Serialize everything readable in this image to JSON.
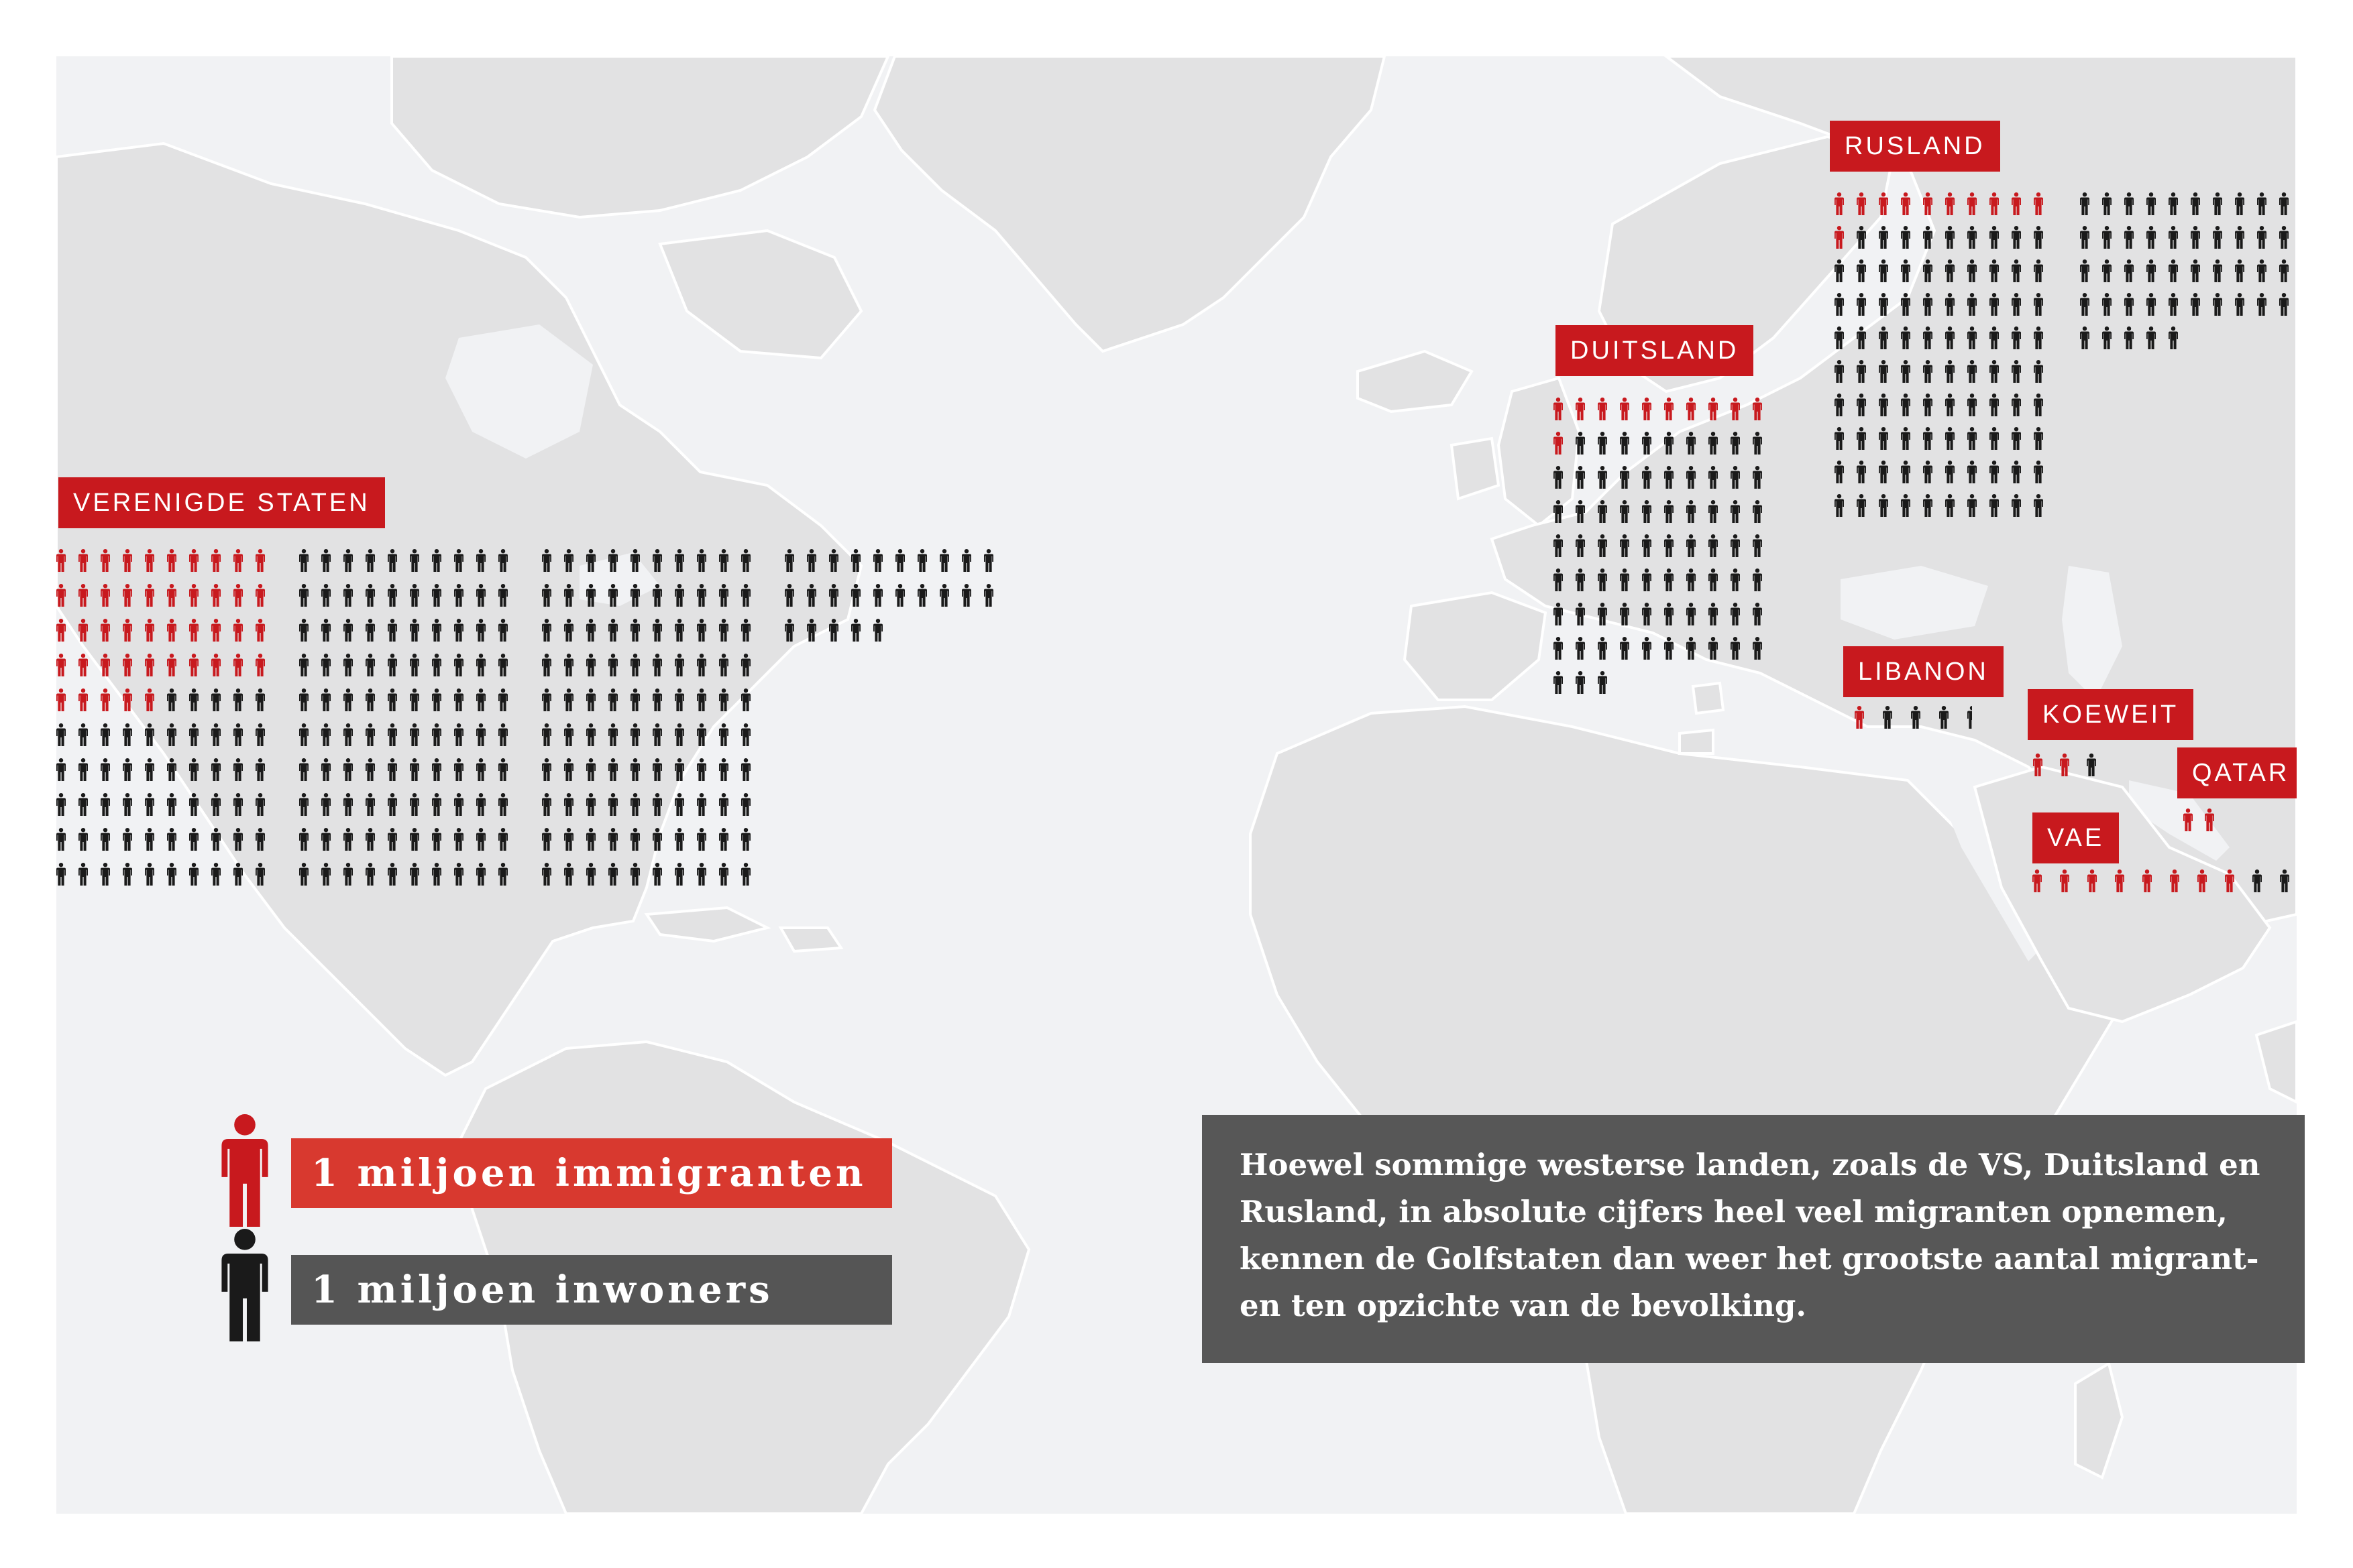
{
  "colors": {
    "immigrant": "#c8191e",
    "inhabitant": "#1a1a1a",
    "label_bg": "#c8191e",
    "legend_immigrant_bg": "#d8392f",
    "legend_inhabitant_bg": "#555555",
    "info_bg": "#575757",
    "land": "#e2e2e3",
    "ocean": "#f1f2f4"
  },
  "countries": [
    {
      "id": "verenigde-staten",
      "label": "VERENIGDE STATEN",
      "immigrants": 45,
      "total": 325
    },
    {
      "id": "duitsland",
      "label": "DUITSLAND",
      "immigrants": 11,
      "total": 83
    },
    {
      "id": "rusland",
      "label": "RUSLAND",
      "immigrants": 11,
      "total": 145
    },
    {
      "id": "libanon",
      "label": "LIBANON",
      "immigrants": 1,
      "total": 4.5
    },
    {
      "id": "koeweit",
      "label": "KOEWEIT",
      "immigrants": 2,
      "total": 3
    },
    {
      "id": "qatar",
      "label": "QATAR",
      "immigrants": 1.5,
      "total": 2
    },
    {
      "id": "vae",
      "label": "VAE",
      "immigrants": 8,
      "total": 10
    }
  ],
  "legend": {
    "immigrants": {
      "label": "1 miljoen immigranten",
      "icon": "person-icon-red"
    },
    "inhabitants": {
      "label": "1 miljoen inwoners",
      "icon": "person-icon-black"
    }
  },
  "info": {
    "lines": [
      "Hoewel sommige westerse landen, zoals de VS, Duitsland en",
      "Rusland, in absolute cijfers heel veel migranten opnemen,",
      "kennen de Golfstaten dan weer het grootste aantal migrant-",
      "en ten opzichte van de bevolking."
    ]
  }
}
